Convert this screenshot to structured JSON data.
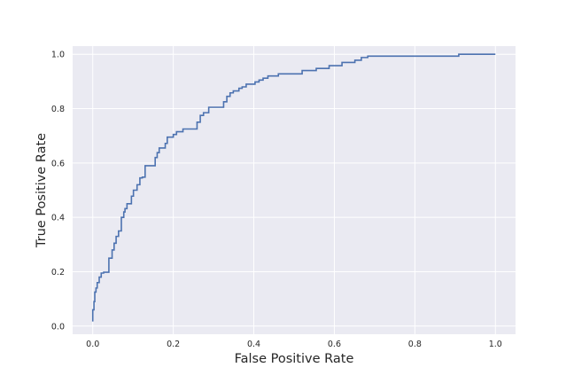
{
  "chart_data": {
    "type": "line",
    "xlabel": "False Positive Rate",
    "ylabel": "True Positive Rate",
    "xlim": [
      -0.05,
      1.05
    ],
    "ylim": [
      -0.03,
      1.03
    ],
    "x_ticks": [
      0.0,
      0.2,
      0.4,
      0.6,
      0.8,
      1.0
    ],
    "x_tick_labels": [
      "0.0",
      "0.2",
      "0.4",
      "0.6",
      "0.8",
      "1.0"
    ],
    "y_ticks": [
      0.0,
      0.2,
      0.4,
      0.6,
      0.8,
      1.0
    ],
    "y_tick_labels": [
      "0.0",
      "0.2",
      "0.4",
      "0.6",
      "0.8",
      "1.0"
    ],
    "grid": true,
    "legend": "none",
    "colors": {
      "background": "#EAEAF2",
      "grid": "#FFFFFF",
      "line": "#4C72B0",
      "text": "#262626"
    },
    "series": [
      {
        "x": [
          0.0,
          0.0,
          0.003,
          0.003,
          0.005,
          0.005,
          0.008,
          0.008,
          0.011,
          0.011,
          0.016,
          0.016,
          0.021,
          0.021,
          0.027,
          0.027,
          0.04,
          0.04,
          0.048,
          0.048,
          0.053,
          0.053,
          0.058,
          0.058,
          0.064,
          0.064,
          0.071,
          0.071,
          0.077,
          0.077,
          0.08,
          0.08,
          0.085,
          0.085,
          0.096,
          0.096,
          0.101,
          0.101,
          0.11,
          0.11,
          0.117,
          0.117,
          0.123,
          0.123,
          0.13,
          0.13,
          0.155,
          0.155,
          0.16,
          0.16,
          0.165,
          0.165,
          0.18,
          0.18,
          0.185,
          0.185,
          0.2,
          0.2,
          0.208,
          0.208,
          0.224,
          0.224,
          0.259,
          0.259,
          0.267,
          0.267,
          0.275,
          0.275,
          0.288,
          0.288,
          0.325,
          0.325,
          0.333,
          0.333,
          0.341,
          0.341,
          0.349,
          0.349,
          0.363,
          0.363,
          0.371,
          0.371,
          0.381,
          0.381,
          0.403,
          0.403,
          0.413,
          0.413,
          0.423,
          0.423,
          0.435,
          0.435,
          0.461,
          0.461,
          0.52,
          0.52,
          0.555,
          0.555,
          0.587,
          0.587,
          0.619,
          0.619,
          0.651,
          0.651,
          0.667,
          0.667,
          0.683,
          0.683,
          0.909,
          0.909,
          1.0
        ],
        "y": [
          0.017,
          0.06,
          0.06,
          0.09,
          0.09,
          0.125,
          0.125,
          0.14,
          0.14,
          0.16,
          0.16,
          0.18,
          0.18,
          0.195,
          0.195,
          0.198,
          0.198,
          0.25,
          0.25,
          0.28,
          0.28,
          0.305,
          0.305,
          0.33,
          0.33,
          0.35,
          0.35,
          0.4,
          0.4,
          0.42,
          0.42,
          0.432,
          0.432,
          0.45,
          0.45,
          0.478,
          0.478,
          0.5,
          0.5,
          0.52,
          0.52,
          0.545,
          0.545,
          0.548,
          0.548,
          0.59,
          0.59,
          0.62,
          0.62,
          0.638,
          0.638,
          0.655,
          0.655,
          0.672,
          0.672,
          0.695,
          0.695,
          0.705,
          0.705,
          0.715,
          0.715,
          0.725,
          0.725,
          0.75,
          0.75,
          0.775,
          0.775,
          0.785,
          0.785,
          0.805,
          0.805,
          0.825,
          0.825,
          0.845,
          0.845,
          0.858,
          0.858,
          0.865,
          0.865,
          0.875,
          0.875,
          0.88,
          0.88,
          0.89,
          0.89,
          0.898,
          0.898,
          0.905,
          0.905,
          0.912,
          0.912,
          0.92,
          0.92,
          0.928,
          0.928,
          0.94,
          0.94,
          0.948,
          0.948,
          0.958,
          0.958,
          0.97,
          0.97,
          0.978,
          0.978,
          0.988,
          0.988,
          0.993,
          0.993,
          1.0,
          1.0
        ]
      }
    ]
  }
}
